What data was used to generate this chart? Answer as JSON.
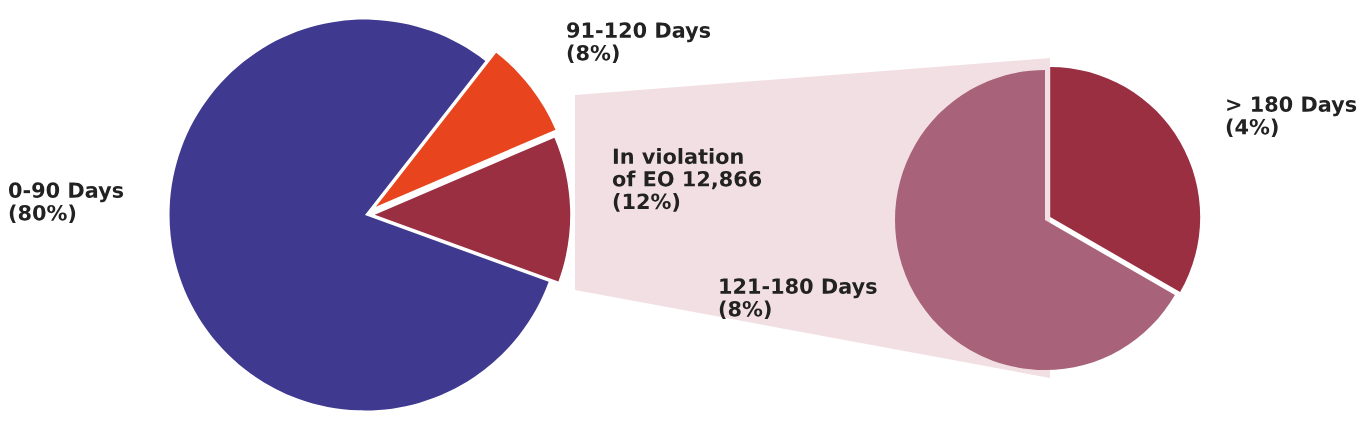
{
  "chart_data": [
    {
      "type": "pie",
      "categories": [
        "91-120 Days",
        "In violation\nof EO 12,866",
        "0-90 Days"
      ],
      "values": [
        8,
        12,
        80
      ],
      "value_labels": [
        "(8%)",
        "(12%)",
        "(80%)"
      ],
      "colors": [
        "#e8441e",
        "#9b2f42",
        "#3f3a8f"
      ]
    },
    {
      "type": "pie",
      "categories": [
        "> 180 Days",
        "121-180 Days"
      ],
      "values": [
        4,
        8
      ],
      "value_labels": [
        "(4%)",
        "(8%)"
      ],
      "colors": [
        "#9b2f42",
        "#a8627a"
      ]
    }
  ]
}
